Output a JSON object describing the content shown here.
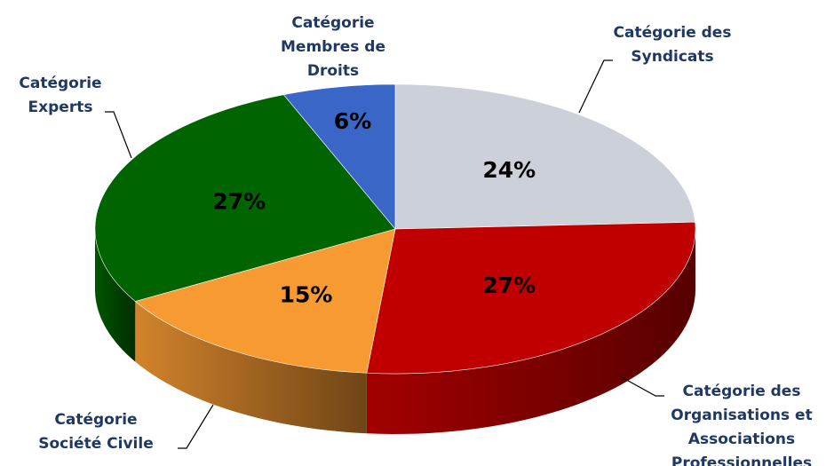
{
  "chart_data": {
    "type": "pie",
    "categories": [
      "Catégorie des\nSyndicats",
      "Catégorie des\nOrganisations et\nAssociations\nProfessionnelles",
      "Catégorie\nSociété Civile",
      "Catégorie\nExperts",
      "Catégorie\nMembres de\nDroits"
    ],
    "values": [
      24,
      27,
      15,
      27,
      6
    ],
    "value_labels": [
      "24%",
      "27%",
      "15%",
      "27%",
      "6%"
    ],
    "colors": [
      "#ccd1d9",
      "#c00000",
      "#f79a32",
      "#006400",
      "#3a66c8"
    ]
  }
}
